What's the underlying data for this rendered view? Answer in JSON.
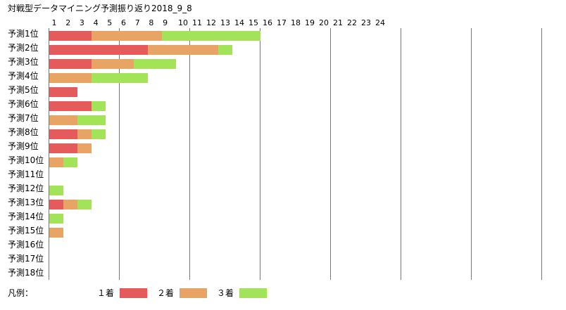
{
  "chart_data": {
    "type": "bar",
    "stacked": true,
    "orientation": "horizontal",
    "title": "対戦型データマイニング予測振り返り2018_9_8",
    "x_ticks": [
      "1",
      "2",
      "3",
      "4",
      "5",
      "6",
      "7",
      "8",
      "9",
      "10",
      "11",
      "12",
      "13",
      "14",
      "15",
      "16",
      "17",
      "18",
      "19",
      "20",
      "21",
      "22",
      "23",
      "24"
    ],
    "xlim": [
      0,
      35
    ],
    "grid": true,
    "categories": [
      "予測1位",
      "予測2位",
      "予測3位",
      "予測4位",
      "予測5位",
      "予測6位",
      "予測7位",
      "予測8位",
      "予測9位",
      "予測10位",
      "予測11位",
      "予測12位",
      "予測13位",
      "予測14位",
      "予測15位",
      "予測16位",
      "予測17位",
      "予測18位"
    ],
    "series": [
      {
        "name": "１着",
        "color": "#e55b5b",
        "values": [
          3,
          7,
          3,
          0,
          2,
          3,
          0,
          2,
          2,
          0,
          0,
          0,
          1,
          0,
          0,
          0,
          0,
          0
        ]
      },
      {
        "name": "２着",
        "color": "#e8a464",
        "values": [
          5,
          5,
          3,
          3,
          0,
          0,
          2,
          1,
          1,
          1,
          0,
          0,
          1,
          0,
          1,
          0,
          0,
          0
        ]
      },
      {
        "name": "３着",
        "color": "#a3e35a",
        "values": [
          7,
          1,
          3,
          4,
          0,
          1,
          2,
          1,
          0,
          1,
          0,
          1,
          1,
          1,
          0,
          0,
          0,
          0
        ]
      }
    ],
    "legend": {
      "label": "凡例：",
      "position": "bottom-left"
    }
  }
}
